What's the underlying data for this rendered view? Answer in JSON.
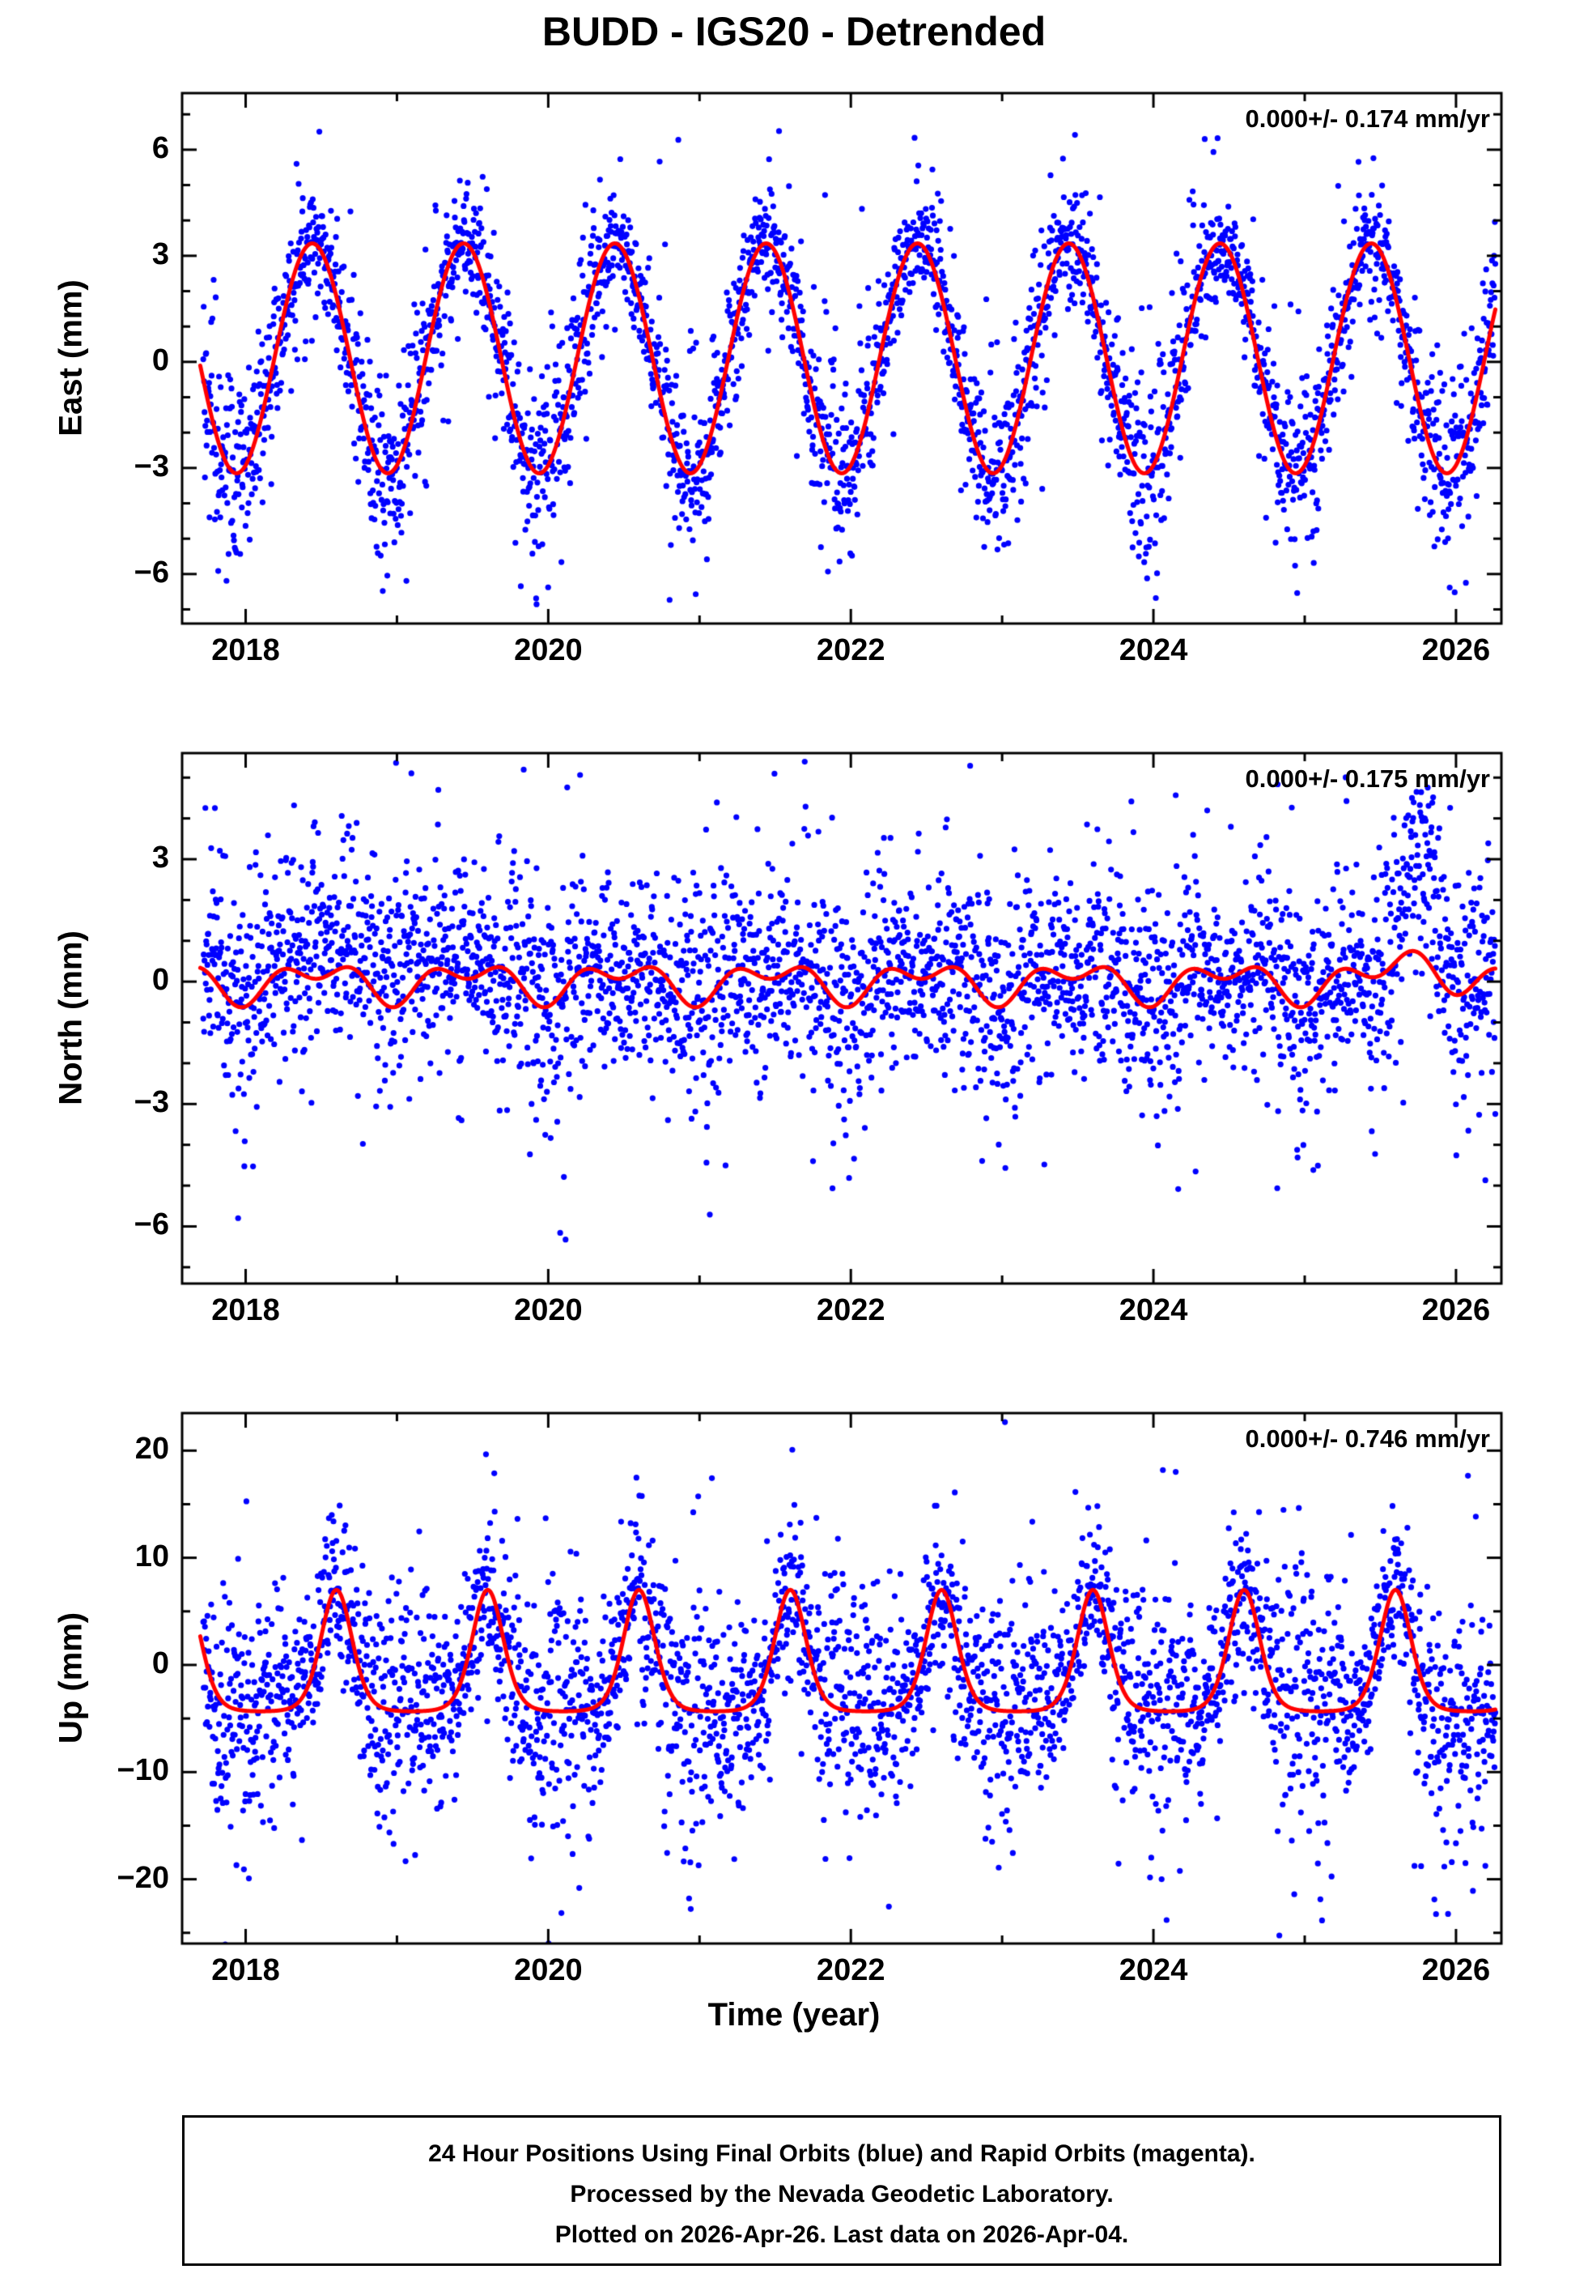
{
  "title": "BUDD - IGS20 - Detrended",
  "xlabel": "Time (year)",
  "footer": {
    "line1": "24 Hour Positions Using Final Orbits (blue) and Rapid Orbits (magenta).",
    "line2": "Processed by the Nevada Geodetic Laboratory.",
    "line3": "Plotted on 2026-Apr-26. Last data on 2026-Apr-04."
  },
  "colors": {
    "points": "#0000ff",
    "model": "#ff0000",
    "axis": "#000000",
    "background": "#ffffff"
  },
  "chart_data": {
    "type": "scatter",
    "description": "GPS daily position time series, detrended, with seasonal model curve per component",
    "station": "BUDD",
    "reference_frame": "IGS20",
    "x": {
      "label": "Time (year)",
      "lim": [
        2017.58,
        2026.3
      ],
      "data_start": 2017.72,
      "data_end": 2026.26,
      "ticks": [
        2018,
        2020,
        2022,
        2024,
        2026
      ],
      "minor_step": 1
    },
    "samples_per_year": 365,
    "panels": [
      {
        "id": "east",
        "ylabel": "East (mm)",
        "annotation": "0.000+/- 0.174 mm/yr",
        "rate_mm_yr": 0.0,
        "rate_sigma_mm_yr": 0.174,
        "ylim": [
          -7.4,
          7.6
        ],
        "yticks": [
          -6,
          -3,
          0,
          3,
          6
        ],
        "yminor": 1,
        "model": {
          "kind": "cosine",
          "amplitude": 3.25,
          "peak": 0.44,
          "offset": 0.1
        },
        "noise": {
          "sigma": 0.95,
          "outlier_sigma": 2.2,
          "outlier_frac": 0.15,
          "seasonal": 0.3,
          "winter_phase": 0.0
        },
        "seed": 11
      },
      {
        "id": "north",
        "ylabel": "North (mm)",
        "annotation": "0.000+/- 0.175 mm/yr",
        "rate_mm_yr": 0.0,
        "rate_sigma_mm_yr": 0.175,
        "ylim": [
          -7.4,
          5.6
        ],
        "yticks": [
          -6,
          -3,
          0,
          3
        ],
        "yminor": 1,
        "model": {
          "kind": "harmonic2",
          "a1": 0.35,
          "p1": 0.48,
          "a2": 0.28,
          "p2": 0.22,
          "bumps": [
            {
              "center": 2025.82,
              "width": 0.22,
              "amp": 0.55
            }
          ]
        },
        "scatter_bumps": [
          {
            "center": 2025.78,
            "width": 0.16,
            "amp": 2.4
          },
          {
            "center": 2018.7,
            "width": 0.85,
            "amp": 0.6
          }
        ],
        "noise": {
          "sigma": 1.15,
          "outlier_sigma": 2.3,
          "outlier_frac": 0.18,
          "seasonal": 0.15,
          "winter_phase": 0.0
        },
        "seed": 23
      },
      {
        "id": "up",
        "ylabel": "Up (mm)",
        "annotation": "0.000+/- 0.746 mm/yr",
        "rate_mm_yr": 0.0,
        "rate_sigma_mm_yr": 0.746,
        "ylim": [
          -26,
          23.5
        ],
        "yticks": [
          -20,
          -10,
          0,
          10,
          20
        ],
        "yminor": 5,
        "model": {
          "kind": "peaked",
          "base": -4.4,
          "amp": 11.4,
          "k": 2.5,
          "peak": 0.6
        },
        "noise": {
          "sigma": 4.4,
          "outlier_sigma": 8.0,
          "outlier_frac": 0.18,
          "seasonal": 0.3,
          "winter_phase": 0.0
        },
        "seed": 37
      }
    ]
  }
}
